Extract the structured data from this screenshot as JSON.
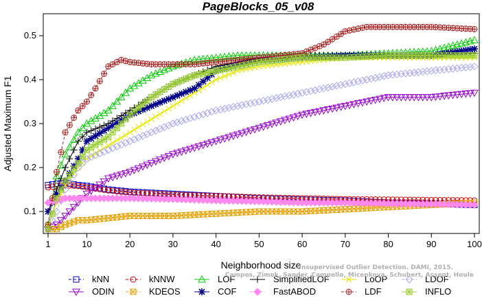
{
  "chart_data": {
    "type": "line",
    "title": "PageBlocks_05_v08",
    "xlabel": "Neighborhood size",
    "ylabel": "Adjusted Maximum F1",
    "xlim": [
      1,
      100
    ],
    "ylim": [
      0.05,
      0.55
    ],
    "xticks": [
      1,
      10,
      20,
      30,
      40,
      50,
      60,
      70,
      80,
      90,
      100
    ],
    "yticks": [
      0.1,
      0.2,
      0.3,
      0.4,
      0.5
    ],
    "x_tick_labels": [
      "1",
      "10",
      "20",
      "30",
      "40",
      "50",
      "60",
      "70",
      "80",
      "90",
      "100"
    ],
    "y_tick_labels": [
      "0.1",
      "0.2",
      "0.3",
      "0.4",
      "0.5"
    ],
    "legend_position": "bottom",
    "credit_lines": [
      "Unsupervised Outlier Detection. DAMI, 2015.",
      "Campos, Zimek, Sander, Campello, Micenkova, Schubert, Assent, Houle"
    ],
    "series": [
      {
        "name": "kNN",
        "color": "#0000cc",
        "marker": "square",
        "dash": "4,3",
        "points": [
          [
            1,
            0.16
          ],
          [
            3,
            0.163
          ],
          [
            5,
            0.165
          ],
          [
            8,
            0.16
          ],
          [
            10,
            0.158
          ],
          [
            15,
            0.15
          ],
          [
            20,
            0.145
          ],
          [
            30,
            0.14
          ],
          [
            40,
            0.135
          ],
          [
            50,
            0.13
          ],
          [
            60,
            0.127
          ],
          [
            70,
            0.125
          ],
          [
            80,
            0.12
          ],
          [
            90,
            0.118
          ],
          [
            100,
            0.115
          ]
        ]
      },
      {
        "name": "kNNW",
        "color": "#cc0000",
        "marker": "circle",
        "dash": "4,3",
        "points": [
          [
            1,
            0.155
          ],
          [
            3,
            0.158
          ],
          [
            5,
            0.16
          ],
          [
            8,
            0.158
          ],
          [
            10,
            0.155
          ],
          [
            15,
            0.148
          ],
          [
            20,
            0.143
          ],
          [
            30,
            0.138
          ],
          [
            40,
            0.135
          ],
          [
            50,
            0.132
          ],
          [
            60,
            0.13
          ],
          [
            70,
            0.128
          ],
          [
            80,
            0.127
          ],
          [
            90,
            0.126
          ],
          [
            100,
            0.125
          ]
        ]
      },
      {
        "name": "LOF",
        "color": "#00cc00",
        "marker": "triangle-up",
        "dash": "",
        "points": [
          [
            1,
            0.07
          ],
          [
            3,
            0.18
          ],
          [
            5,
            0.23
          ],
          [
            8,
            0.28
          ],
          [
            10,
            0.3
          ],
          [
            15,
            0.33
          ],
          [
            18,
            0.36
          ],
          [
            20,
            0.38
          ],
          [
            25,
            0.41
          ],
          [
            30,
            0.43
          ],
          [
            35,
            0.445
          ],
          [
            40,
            0.45
          ],
          [
            45,
            0.455
          ],
          [
            50,
            0.455
          ],
          [
            55,
            0.455
          ],
          [
            60,
            0.455
          ],
          [
            70,
            0.455
          ],
          [
            80,
            0.46
          ],
          [
            90,
            0.465
          ],
          [
            100,
            0.49
          ]
        ]
      },
      {
        "name": "SimplifiedLOF",
        "color": "#000000",
        "marker": "plus",
        "dash": "",
        "points": [
          [
            1,
            0.1
          ],
          [
            3,
            0.15
          ],
          [
            5,
            0.2
          ],
          [
            8,
            0.26
          ],
          [
            10,
            0.28
          ],
          [
            15,
            0.3
          ],
          [
            20,
            0.33
          ],
          [
            25,
            0.36
          ],
          [
            30,
            0.39
          ],
          [
            35,
            0.41
          ],
          [
            40,
            0.43
          ],
          [
            45,
            0.44
          ],
          [
            50,
            0.45
          ],
          [
            55,
            0.45
          ],
          [
            60,
            0.455
          ],
          [
            70,
            0.455
          ],
          [
            80,
            0.455
          ],
          [
            90,
            0.455
          ],
          [
            100,
            0.46
          ]
        ]
      },
      {
        "name": "LoOP",
        "color": "#e6e600",
        "marker": "x",
        "dash": "",
        "points": [
          [
            1,
            0.07
          ],
          [
            3,
            0.12
          ],
          [
            5,
            0.16
          ],
          [
            8,
            0.2
          ],
          [
            10,
            0.22
          ],
          [
            15,
            0.25
          ],
          [
            20,
            0.28
          ],
          [
            25,
            0.31
          ],
          [
            30,
            0.34
          ],
          [
            35,
            0.37
          ],
          [
            40,
            0.4
          ],
          [
            45,
            0.42
          ],
          [
            50,
            0.43
          ],
          [
            60,
            0.44
          ],
          [
            70,
            0.45
          ],
          [
            80,
            0.45
          ],
          [
            90,
            0.45
          ],
          [
            100,
            0.45
          ]
        ]
      },
      {
        "name": "LDOF",
        "color": "#aaaaee",
        "marker": "diamond",
        "dash": "4,3",
        "points": [
          [
            1,
            0.06
          ],
          [
            3,
            0.1
          ],
          [
            5,
            0.15
          ],
          [
            8,
            0.2
          ],
          [
            10,
            0.22
          ],
          [
            15,
            0.24
          ],
          [
            20,
            0.26
          ],
          [
            25,
            0.28
          ],
          [
            30,
            0.3
          ],
          [
            40,
            0.33
          ],
          [
            50,
            0.35
          ],
          [
            60,
            0.37
          ],
          [
            70,
            0.39
          ],
          [
            80,
            0.41
          ],
          [
            90,
            0.42
          ],
          [
            100,
            0.43
          ]
        ]
      },
      {
        "name": "ODIN",
        "color": "#9900cc",
        "marker": "triangle-down",
        "dash": "",
        "points": [
          [
            1,
            0.06
          ],
          [
            3,
            0.07
          ],
          [
            5,
            0.09
          ],
          [
            8,
            0.12
          ],
          [
            10,
            0.14
          ],
          [
            15,
            0.175
          ],
          [
            20,
            0.19
          ],
          [
            25,
            0.21
          ],
          [
            30,
            0.23
          ],
          [
            40,
            0.26
          ],
          [
            50,
            0.29
          ],
          [
            60,
            0.32
          ],
          [
            70,
            0.34
          ],
          [
            80,
            0.36
          ],
          [
            90,
            0.36
          ],
          [
            100,
            0.37
          ]
        ]
      },
      {
        "name": "KDEOS",
        "color": "#e6a000",
        "marker": "square-x",
        "dash": "4,3",
        "points": [
          [
            1,
            0.06
          ],
          [
            3,
            0.06
          ],
          [
            5,
            0.07
          ],
          [
            8,
            0.08
          ],
          [
            10,
            0.08
          ],
          [
            15,
            0.085
          ],
          [
            20,
            0.09
          ],
          [
            25,
            0.09
          ],
          [
            30,
            0.09
          ],
          [
            40,
            0.095
          ],
          [
            50,
            0.1
          ],
          [
            60,
            0.1
          ],
          [
            70,
            0.105
          ],
          [
            80,
            0.11
          ],
          [
            90,
            0.115
          ],
          [
            100,
            0.12
          ]
        ]
      },
      {
        "name": "COF",
        "color": "#000088",
        "marker": "star",
        "dash": "",
        "points": [
          [
            1,
            0.1
          ],
          [
            3,
            0.14
          ],
          [
            5,
            0.17
          ],
          [
            8,
            0.22
          ],
          [
            10,
            0.26
          ],
          [
            15,
            0.29
          ],
          [
            20,
            0.32
          ],
          [
            25,
            0.34
          ],
          [
            30,
            0.36
          ],
          [
            35,
            0.38
          ],
          [
            40,
            0.42
          ],
          [
            45,
            0.435
          ],
          [
            50,
            0.445
          ],
          [
            60,
            0.45
          ],
          [
            70,
            0.455
          ],
          [
            80,
            0.455
          ],
          [
            90,
            0.455
          ],
          [
            100,
            0.47
          ]
        ]
      },
      {
        "name": "FastABOD",
        "color": "#ff88ee",
        "marker": "diamond-filled",
        "dash": "4,3",
        "points": [
          [
            1,
            0.12
          ],
          [
            3,
            0.125
          ],
          [
            5,
            0.13
          ],
          [
            8,
            0.13
          ],
          [
            10,
            0.13
          ],
          [
            15,
            0.13
          ],
          [
            20,
            0.13
          ],
          [
            30,
            0.128
          ],
          [
            40,
            0.125
          ],
          [
            50,
            0.123
          ],
          [
            60,
            0.12
          ],
          [
            70,
            0.12
          ],
          [
            80,
            0.118
          ],
          [
            90,
            0.117
          ],
          [
            100,
            0.115
          ]
        ]
      },
      {
        "name": "LDF",
        "color": "#aa2222",
        "marker": "circle-plus",
        "dash": "4,3",
        "points": [
          [
            1,
            0.07
          ],
          [
            3,
            0.19
          ],
          [
            5,
            0.28
          ],
          [
            8,
            0.33
          ],
          [
            10,
            0.35
          ],
          [
            12,
            0.38
          ],
          [
            15,
            0.43
          ],
          [
            18,
            0.445
          ],
          [
            20,
            0.44
          ],
          [
            25,
            0.435
          ],
          [
            30,
            0.435
          ],
          [
            35,
            0.435
          ],
          [
            40,
            0.44
          ],
          [
            45,
            0.445
          ],
          [
            50,
            0.45
          ],
          [
            55,
            0.455
          ],
          [
            60,
            0.46
          ],
          [
            65,
            0.48
          ],
          [
            70,
            0.51
          ],
          [
            75,
            0.52
          ],
          [
            80,
            0.52
          ],
          [
            90,
            0.52
          ],
          [
            100,
            0.515
          ]
        ]
      },
      {
        "name": "INFLO",
        "color": "#99cc33",
        "marker": "square-star",
        "dash": "",
        "points": [
          [
            1,
            0.06
          ],
          [
            3,
            0.13
          ],
          [
            5,
            0.17
          ],
          [
            8,
            0.21
          ],
          [
            10,
            0.24
          ],
          [
            15,
            0.27
          ],
          [
            20,
            0.32
          ],
          [
            25,
            0.36
          ],
          [
            30,
            0.39
          ],
          [
            35,
            0.41
          ],
          [
            40,
            0.42
          ],
          [
            45,
            0.43
          ],
          [
            50,
            0.44
          ],
          [
            60,
            0.45
          ],
          [
            70,
            0.45
          ],
          [
            80,
            0.455
          ],
          [
            90,
            0.455
          ],
          [
            100,
            0.455
          ]
        ]
      }
    ],
    "legend_order": [
      "kNN",
      "kNNW",
      "LOF",
      "SimplifiedLOF",
      "LoOP",
      "LDOF",
      "ODIN",
      "KDEOS",
      "COF",
      "FastABOD",
      "LDF",
      "INFLO"
    ]
  }
}
